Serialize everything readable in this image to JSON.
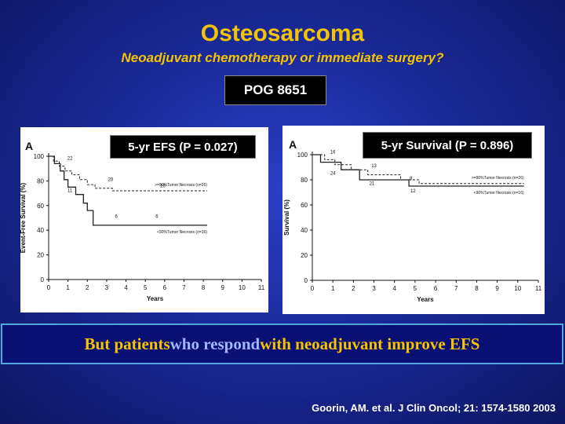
{
  "slide": {
    "title": "Osteosarcoma",
    "subtitle": "Neoadjuvant chemotherapy or immediate surgery?",
    "study": "POG 8651",
    "banner_part1": "But patients ",
    "banner_part2": "who respond",
    "banner_part3": " with neoadjuvant improve EFS",
    "citation": "Goorin, AM. et al. J Clin Oncol; 21: 1574-1580 2003",
    "colors": {
      "title": "#f5c400",
      "background": "#1b2a9a",
      "banner_border": "#4fa7e0"
    }
  },
  "stats": {
    "left": "5-yr EFS (P = 0.027)",
    "right": "5-yr Survival (P = 0.896)"
  },
  "chart_data": [
    {
      "type": "line",
      "panel_label": "A",
      "xlabel": "Years",
      "ylabel": "Event-Free Survival (%)",
      "xlim": [
        0,
        11
      ],
      "ylim": [
        0,
        100
      ],
      "xticks": [
        "0",
        "1",
        "2",
        "3",
        "4",
        "5",
        "6",
        "7",
        "8",
        "9",
        "10",
        "11"
      ],
      "yticks": [
        "0",
        "20",
        "40",
        "60",
        "80",
        "100"
      ],
      "series": [
        {
          "name": ">=90%Tumor Necrosis (n=26)",
          "style": "dashed",
          "x": [
            0,
            0.25,
            0.25,
            0.55,
            0.55,
            0.85,
            0.85,
            1.2,
            1.2,
            1.6,
            1.6,
            2.0,
            2.0,
            2.4,
            2.4,
            3.3,
            3.3,
            8.2
          ],
          "y": [
            100,
            100,
            96,
            96,
            92,
            92,
            88,
            88,
            85,
            85,
            81,
            81,
            77,
            77,
            74,
            74,
            72,
            72
          ],
          "at_risk": [
            {
              "x": 1.1,
              "y": 97,
              "label": "22"
            },
            {
              "x": 3.2,
              "y": 80,
              "label": "20"
            },
            {
              "x": 5.9,
              "y": 75,
              "label": "16"
            }
          ]
        },
        {
          "name": "<90%Tumor Necrosis (n=16)",
          "style": "solid",
          "x": [
            0,
            0.3,
            0.3,
            0.6,
            0.6,
            0.8,
            0.8,
            1.0,
            1.0,
            1.4,
            1.4,
            1.8,
            1.8,
            2.0,
            2.0,
            2.3,
            2.3,
            8.2
          ],
          "y": [
            100,
            100,
            94,
            94,
            88,
            88,
            81,
            81,
            75,
            75,
            69,
            69,
            62,
            62,
            56,
            56,
            44,
            44
          ],
          "at_risk": [
            {
              "x": 1.1,
              "y": 71,
              "label": "11"
            },
            {
              "x": 3.5,
              "y": 50,
              "label": "6"
            },
            {
              "x": 5.6,
              "y": 50,
              "label": "6"
            }
          ]
        }
      ]
    },
    {
      "type": "line",
      "panel_label": "A",
      "xlabel": "Years",
      "ylabel": "Survival (%)",
      "xlim": [
        0,
        11
      ],
      "ylim": [
        0,
        100
      ],
      "xticks": [
        "0",
        "1",
        "2",
        "3",
        "4",
        "5",
        "6",
        "7",
        "8",
        "9",
        "10",
        "11"
      ],
      "yticks": [
        "0",
        "20",
        "40",
        "60",
        "80",
        "100"
      ],
      "series": [
        {
          "name": ">=90%Tumor Necrosis (n=26)",
          "style": "dashed",
          "x": [
            0,
            0.6,
            0.6,
            1.1,
            1.1,
            1.9,
            1.9,
            2.7,
            2.7,
            4.3,
            4.3,
            5.2,
            5.2,
            10.3
          ],
          "y": [
            100,
            100,
            96,
            96,
            92,
            92,
            88,
            88,
            84,
            84,
            80,
            80,
            77,
            77
          ],
          "at_risk": [
            {
              "x": 1.0,
              "y": 101,
              "label": "16"
            },
            {
              "x": 1.0,
              "y": 84,
              "label": "24"
            },
            {
              "x": 3.0,
              "y": 90,
              "label": "13"
            },
            {
              "x": 4.8,
              "y": 80,
              "label": "8"
            }
          ]
        },
        {
          "name": "<90%Tumor Necrosis (n=16)",
          "style": "solid",
          "x": [
            0,
            0.4,
            0.4,
            1.4,
            1.4,
            2.3,
            2.3,
            4.7,
            4.7,
            10.3
          ],
          "y": [
            100,
            100,
            94,
            94,
            88,
            88,
            80,
            80,
            75,
            75
          ],
          "at_risk": [
            {
              "x": 2.9,
              "y": 76,
              "label": "21"
            },
            {
              "x": 4.9,
              "y": 70,
              "label": "12"
            }
          ]
        }
      ]
    }
  ]
}
